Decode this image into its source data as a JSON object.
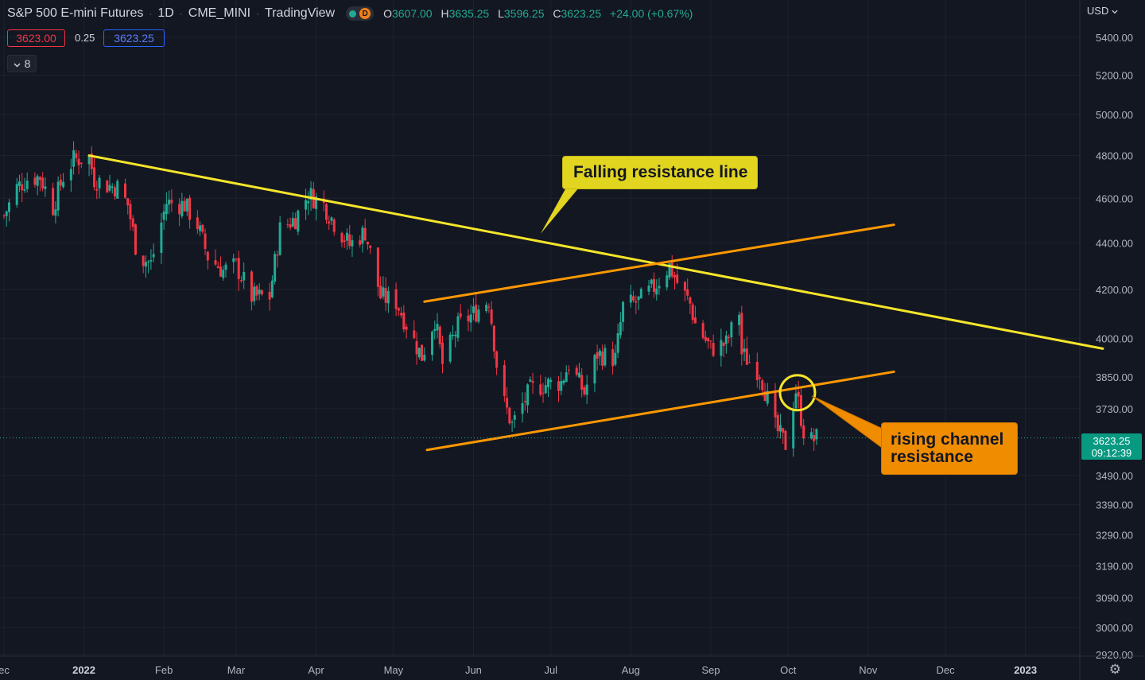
{
  "header": {
    "symbol": "S&P 500 E-mini Futures",
    "interval": "1D",
    "exchange": "CME_MINI",
    "source": "TradingView",
    "badge": "D",
    "ohlc": {
      "o_label": "O",
      "o": "3607.00",
      "h_label": "H",
      "h": "3635.25",
      "l_label": "L",
      "l": "3596.25",
      "c_label": "C",
      "c": "3623.25",
      "change": "+24.00 (+0.67%)"
    }
  },
  "trade": {
    "sell": "3623.00",
    "spread": "0.25",
    "buy": "3623.25"
  },
  "indicators_toggle": {
    "icon": "chevron-down-icon",
    "count": "8"
  },
  "currency": "USD",
  "price_tag": {
    "price": "3623.25",
    "countdown": "09:12:39"
  },
  "annotations": {
    "falling": "Falling resistance line",
    "rising_1": "rising channel",
    "rising_2": "resistance"
  },
  "colors": {
    "background": "#131722",
    "up": "#22ab94",
    "down": "#f23645",
    "yellow": "#f5e52a",
    "orange": "#ff9800"
  },
  "chart_data": {
    "type": "candlestick",
    "title": "S&P 500 E-mini Futures",
    "ylim": [
      2920,
      5560
    ],
    "y_scale": "log",
    "xlim": [
      "2021-12-01",
      "2023-01-31"
    ],
    "y_ticks": [
      "5400.00",
      "5200.00",
      "5000.00",
      "4800.00",
      "4600.00",
      "4400.00",
      "4200.00",
      "4000.00",
      "3850.00",
      "3730.00",
      "3490.00",
      "3390.00",
      "3290.00",
      "3190.00",
      "3090.00",
      "3000.00",
      "2920.00"
    ],
    "x_ticks": [
      {
        "label": "ec",
        "date": "2021-12-01"
      },
      {
        "label": "2022",
        "date": "2022-01-01",
        "bold": true
      },
      {
        "label": "Feb",
        "date": "2022-02-01"
      },
      {
        "label": "Mar",
        "date": "2022-03-01"
      },
      {
        "label": "Apr",
        "date": "2022-04-01"
      },
      {
        "label": "May",
        "date": "2022-05-01"
      },
      {
        "label": "Jun",
        "date": "2022-06-01"
      },
      {
        "label": "Jul",
        "date": "2022-07-01"
      },
      {
        "label": "Aug",
        "date": "2022-08-01"
      },
      {
        "label": "Sep",
        "date": "2022-09-01"
      },
      {
        "label": "Oct",
        "date": "2022-10-01"
      },
      {
        "label": "Nov",
        "date": "2022-11-01"
      },
      {
        "label": "Dec",
        "date": "2022-12-01"
      },
      {
        "label": "2023",
        "date": "2023-01-01",
        "bold": true
      }
    ],
    "closes": [
      [
        "2021-12-01",
        4520
      ],
      [
        "2021-12-06",
        4650
      ],
      [
        "2021-12-10",
        4690
      ],
      [
        "2021-12-15",
        4700
      ],
      [
        "2021-12-20",
        4560
      ],
      [
        "2021-12-24",
        4700
      ],
      [
        "2021-12-28",
        4780
      ],
      [
        "2022-01-03",
        4790
      ],
      [
        "2022-01-05",
        4690
      ],
      [
        "2022-01-10",
        4660
      ],
      [
        "2022-01-14",
        4650
      ],
      [
        "2022-01-18",
        4570
      ],
      [
        "2022-01-21",
        4390
      ],
      [
        "2022-01-24",
        4330
      ],
      [
        "2022-01-27",
        4310
      ],
      [
        "2022-02-02",
        4580
      ],
      [
        "2022-02-09",
        4570
      ],
      [
        "2022-02-14",
        4480
      ],
      [
        "2022-02-18",
        4340
      ],
      [
        "2022-02-24",
        4280
      ],
      [
        "2022-03-01",
        4300
      ],
      [
        "2022-03-07",
        4170
      ],
      [
        "2022-03-14",
        4170
      ],
      [
        "2022-03-18",
        4460
      ],
      [
        "2022-03-24",
        4510
      ],
      [
        "2022-03-29",
        4620
      ],
      [
        "2022-04-04",
        4570
      ],
      [
        "2022-04-08",
        4490
      ],
      [
        "2022-04-14",
        4390
      ],
      [
        "2022-04-20",
        4450
      ],
      [
        "2022-04-26",
        4170
      ],
      [
        "2022-05-02",
        4150
      ],
      [
        "2022-05-09",
        3990
      ],
      [
        "2022-05-12",
        3930
      ],
      [
        "2022-05-17",
        4080
      ],
      [
        "2022-05-20",
        3900
      ],
      [
        "2022-05-26",
        4050
      ],
      [
        "2022-06-01",
        4100
      ],
      [
        "2022-06-07",
        4160
      ],
      [
        "2022-06-10",
        3900
      ],
      [
        "2022-06-13",
        3750
      ],
      [
        "2022-06-16",
        3670
      ],
      [
        "2022-06-23",
        3800
      ],
      [
        "2022-06-28",
        3820
      ],
      [
        "2022-07-05",
        3830
      ],
      [
        "2022-07-08",
        3900
      ],
      [
        "2022-07-14",
        3790
      ],
      [
        "2022-07-19",
        3940
      ],
      [
        "2022-07-26",
        3920
      ],
      [
        "2022-07-29",
        4130
      ],
      [
        "2022-08-04",
        4150
      ],
      [
        "2022-08-10",
        4210
      ],
      [
        "2022-08-16",
        4300
      ],
      [
        "2022-08-19",
        4230
      ],
      [
        "2022-08-24",
        4140
      ],
      [
        "2022-08-26",
        4060
      ],
      [
        "2022-09-01",
        3960
      ],
      [
        "2022-09-07",
        3980
      ],
      [
        "2022-09-12",
        4110
      ],
      [
        "2022-09-13",
        3940
      ],
      [
        "2022-09-20",
        3870
      ],
      [
        "2022-09-26",
        3660
      ],
      [
        "2022-09-30",
        3600
      ],
      [
        "2022-10-04",
        3800
      ],
      [
        "2022-10-07",
        3650
      ],
      [
        "2022-10-10",
        3613
      ],
      [
        "2022-10-12",
        3623
      ]
    ],
    "lines": [
      {
        "name": "Falling resistance line",
        "color": "yellow",
        "from": [
          "2022-01-03",
          4800
        ],
        "to": [
          "2023-01-31",
          3960
        ]
      },
      {
        "name": "rising channel resistance",
        "color": "orange",
        "from": [
          "2022-05-14",
          3580
        ],
        "to": [
          "2022-11-11",
          3870
        ]
      },
      {
        "color": "orange",
        "from": [
          "2022-05-13",
          4150
        ],
        "to": [
          "2022-11-11",
          4480
        ]
      }
    ],
    "current_price": 3623.25
  }
}
